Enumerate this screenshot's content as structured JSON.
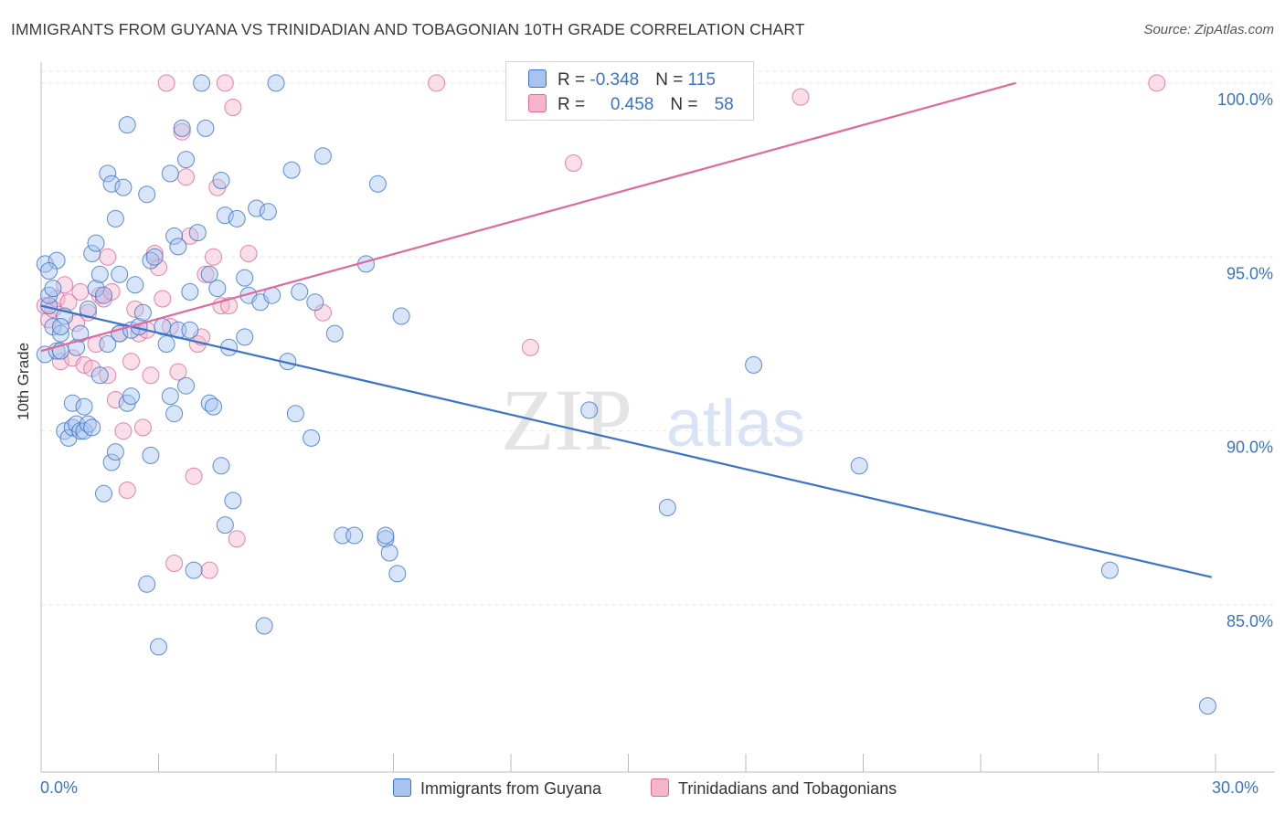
{
  "title": "IMMIGRANTS FROM GUYANA VS TRINIDADIAN AND TOBAGONIAN 10TH GRADE CORRELATION CHART",
  "source": "Source: ZipAtlas.com",
  "watermark": {
    "zip": "ZIP",
    "atlas": "atlas"
  },
  "colors": {
    "blue": "#3a73c9",
    "blue_fill": "#a8c4ee",
    "pink": "#e0689a",
    "pink_fill": "#f5b5cb",
    "tick_text": "#3a73c9"
  },
  "legend": {
    "blue": {
      "r_label": "R = ",
      "r_value": "-0.348",
      "n_label": "N = ",
      "n_value": "115"
    },
    "pink": {
      "r_label": "R = ",
      "r_value": "0.458",
      "n_label": "N = ",
      "n_value": "58"
    }
  },
  "chart_data": {
    "type": "scatter",
    "title": "IMMIGRANTS FROM GUYANA VS TRINIDADIAN AND TOBAGONIAN 10TH GRADE CORRELATION CHART",
    "xlabel": "",
    "ylabel": "10th Grade",
    "xlim": [
      0,
      30
    ],
    "ylim": [
      80.2,
      100.6
    ],
    "x_tick_labels": [
      "0.0%",
      "30.0%"
    ],
    "y_ticks": [
      85,
      90,
      95,
      100
    ],
    "y_tick_labels": [
      "85.0%",
      "90.0%",
      "95.0%",
      "100.0%"
    ],
    "grid": true,
    "legend_position": "top-center",
    "series": [
      {
        "name": "Immigrants from Guyana",
        "color": "#3a73c9",
        "trend": {
          "x": [
            0,
            29.9
          ],
          "y": [
            93.6,
            85.8
          ]
        },
        "points": [
          [
            0.1,
            92.2
          ],
          [
            0.1,
            94.8
          ],
          [
            0.2,
            93.6
          ],
          [
            0.2,
            93.9
          ],
          [
            0.3,
            94.1
          ],
          [
            0.3,
            93.0
          ],
          [
            0.4,
            94.9
          ],
          [
            0.4,
            92.3
          ],
          [
            0.5,
            92.3
          ],
          [
            0.5,
            92.8
          ],
          [
            0.6,
            93.3
          ],
          [
            0.6,
            90.0
          ],
          [
            0.7,
            89.8
          ],
          [
            0.8,
            90.8
          ],
          [
            0.8,
            90.1
          ],
          [
            0.9,
            90.2
          ],
          [
            0.9,
            92.4
          ],
          [
            1.0,
            90.0
          ],
          [
            1.0,
            92.8
          ],
          [
            1.1,
            90.7
          ],
          [
            1.1,
            90.0
          ],
          [
            1.2,
            93.5
          ],
          [
            1.2,
            90.2
          ],
          [
            1.3,
            90.1
          ],
          [
            1.3,
            95.1
          ],
          [
            1.4,
            95.4
          ],
          [
            1.4,
            94.1
          ],
          [
            1.5,
            94.5
          ],
          [
            1.5,
            91.6
          ],
          [
            1.6,
            93.9
          ],
          [
            1.6,
            88.2
          ],
          [
            1.7,
            97.4
          ],
          [
            1.8,
            97.1
          ],
          [
            1.8,
            89.1
          ],
          [
            1.9,
            89.4
          ],
          [
            1.9,
            96.1
          ],
          [
            2.0,
            94.5
          ],
          [
            2.0,
            92.8
          ],
          [
            2.1,
            97.0
          ],
          [
            2.2,
            98.8
          ],
          [
            2.2,
            90.8
          ],
          [
            2.3,
            91.0
          ],
          [
            2.3,
            92.9
          ],
          [
            2.4,
            94.2
          ],
          [
            2.5,
            93.0
          ],
          [
            2.6,
            93.4
          ],
          [
            2.7,
            85.6
          ],
          [
            2.7,
            96.8
          ],
          [
            2.8,
            89.3
          ],
          [
            2.8,
            94.9
          ],
          [
            2.9,
            95.0
          ],
          [
            3.0,
            83.8
          ],
          [
            3.1,
            93.0
          ],
          [
            3.2,
            92.5
          ],
          [
            3.3,
            97.4
          ],
          [
            3.3,
            91.0
          ],
          [
            3.4,
            90.5
          ],
          [
            3.4,
            95.6
          ],
          [
            3.5,
            95.3
          ],
          [
            3.5,
            92.9
          ],
          [
            3.6,
            98.7
          ],
          [
            3.7,
            97.8
          ],
          [
            3.7,
            91.3
          ],
          [
            3.8,
            92.9
          ],
          [
            3.9,
            86.0
          ],
          [
            4.0,
            95.7
          ],
          [
            4.1,
            100.0
          ],
          [
            4.2,
            98.7
          ],
          [
            4.3,
            94.5
          ],
          [
            4.3,
            90.8
          ],
          [
            4.4,
            90.7
          ],
          [
            4.5,
            94.1
          ],
          [
            4.6,
            89.0
          ],
          [
            4.6,
            97.2
          ],
          [
            4.7,
            96.2
          ],
          [
            4.7,
            87.3
          ],
          [
            4.8,
            92.4
          ],
          [
            4.9,
            88.0
          ],
          [
            5.0,
            96.1
          ],
          [
            5.2,
            94.4
          ],
          [
            5.2,
            92.7
          ],
          [
            5.3,
            93.9
          ],
          [
            5.5,
            96.4
          ],
          [
            5.6,
            93.7
          ],
          [
            5.7,
            84.4
          ],
          [
            5.8,
            96.3
          ],
          [
            5.9,
            93.9
          ],
          [
            6.0,
            100.0
          ],
          [
            6.3,
            92.0
          ],
          [
            6.4,
            97.5
          ],
          [
            6.5,
            90.5
          ],
          [
            6.6,
            94.0
          ],
          [
            6.9,
            89.8
          ],
          [
            7.0,
            93.7
          ],
          [
            7.2,
            97.9
          ],
          [
            7.5,
            92.8
          ],
          [
            7.7,
            87.0
          ],
          [
            8.0,
            87.0
          ],
          [
            8.3,
            94.8
          ],
          [
            8.6,
            97.1
          ],
          [
            8.8,
            86.9
          ],
          [
            8.8,
            87.0
          ],
          [
            8.9,
            86.5
          ],
          [
            9.1,
            85.9
          ],
          [
            9.2,
            93.3
          ],
          [
            14.0,
            90.6
          ],
          [
            16.0,
            87.8
          ],
          [
            18.2,
            91.9
          ],
          [
            20.9,
            89.0
          ],
          [
            27.3,
            86.0
          ],
          [
            29.8,
            82.1
          ],
          [
            0.2,
            94.6
          ],
          [
            0.5,
            93.0
          ],
          [
            1.7,
            92.5
          ],
          [
            3.8,
            94.0
          ]
        ]
      },
      {
        "name": "Trinidadians and Tobagonians",
        "color": "#e0689a",
        "trend": {
          "x": [
            0,
            24.9
          ],
          "y": [
            92.3,
            100.0
          ]
        },
        "points": [
          [
            0.1,
            93.6
          ],
          [
            0.2,
            93.2
          ],
          [
            0.3,
            93.5
          ],
          [
            0.4,
            93.8
          ],
          [
            0.5,
            92.0
          ],
          [
            0.6,
            94.2
          ],
          [
            0.7,
            93.7
          ],
          [
            0.8,
            92.1
          ],
          [
            0.9,
            93.1
          ],
          [
            1.0,
            94.0
          ],
          [
            1.1,
            91.9
          ],
          [
            1.2,
            93.4
          ],
          [
            1.3,
            91.8
          ],
          [
            1.4,
            92.5
          ],
          [
            1.5,
            93.9
          ],
          [
            1.6,
            93.8
          ],
          [
            1.7,
            95.0
          ],
          [
            1.8,
            94.0
          ],
          [
            1.9,
            90.9
          ],
          [
            2.0,
            92.8
          ],
          [
            2.1,
            90.0
          ],
          [
            2.2,
            88.3
          ],
          [
            2.3,
            92.0
          ],
          [
            2.4,
            93.5
          ],
          [
            2.5,
            92.8
          ],
          [
            2.6,
            90.1
          ],
          [
            2.7,
            92.9
          ],
          [
            2.8,
            91.6
          ],
          [
            2.9,
            95.1
          ],
          [
            3.0,
            94.7
          ],
          [
            3.1,
            93.8
          ],
          [
            3.2,
            100.0
          ],
          [
            3.3,
            93.0
          ],
          [
            3.4,
            86.2
          ],
          [
            3.5,
            91.7
          ],
          [
            3.6,
            98.6
          ],
          [
            3.7,
            97.3
          ],
          [
            3.8,
            95.6
          ],
          [
            3.9,
            88.7
          ],
          [
            4.0,
            92.5
          ],
          [
            4.1,
            92.7
          ],
          [
            4.2,
            94.5
          ],
          [
            4.3,
            86.0
          ],
          [
            4.4,
            95.0
          ],
          [
            4.5,
            97.0
          ],
          [
            4.6,
            93.6
          ],
          [
            4.7,
            100.0
          ],
          [
            4.8,
            93.6
          ],
          [
            4.9,
            99.3
          ],
          [
            5.0,
            86.9
          ],
          [
            5.3,
            95.1
          ],
          [
            7.2,
            93.4
          ],
          [
            10.1,
            100.0
          ],
          [
            12.5,
            92.4
          ],
          [
            13.6,
            97.7
          ],
          [
            19.4,
            99.6
          ],
          [
            28.5,
            100.0
          ],
          [
            1.7,
            91.6
          ]
        ]
      }
    ]
  },
  "bottom_legend": {
    "blue_label": "Immigrants from Guyana",
    "pink_label": "Trinidadians and Tobagonians"
  }
}
